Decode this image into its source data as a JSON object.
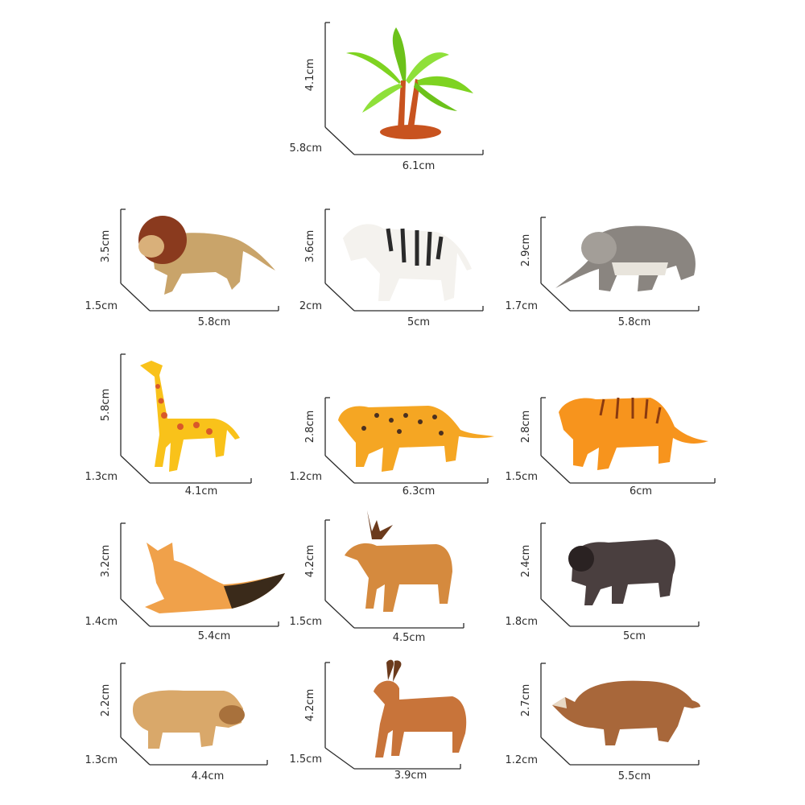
{
  "figures": [
    {
      "name": "palm-tree",
      "height": "4.1cm",
      "depth": "5.8cm",
      "width": "6.1cm",
      "colors": {
        "main": "#7ed321",
        "accent": "#c8531f"
      }
    },
    {
      "name": "lion",
      "height": "3.5cm",
      "depth": "1.5cm",
      "width": "5.8cm",
      "colors": {
        "main": "#c9a46a",
        "accent": "#8a3a1e"
      }
    },
    {
      "name": "zebra",
      "height": "3.6cm",
      "depth": "2cm",
      "width": "5cm",
      "colors": {
        "main": "#f4f2ee",
        "accent": "#2a2a2a"
      }
    },
    {
      "name": "elephant",
      "height": "2.9cm",
      "depth": "1.7cm",
      "width": "5.8cm",
      "colors": {
        "main": "#8a8580",
        "accent": "#e8e4dc"
      }
    },
    {
      "name": "giraffe",
      "height": "5.8cm",
      "depth": "1.3cm",
      "width": "4.1cm",
      "colors": {
        "main": "#f9c21a",
        "accent": "#d9592a"
      }
    },
    {
      "name": "leopard",
      "height": "2.8cm",
      "depth": "1.2cm",
      "width": "6.3cm",
      "colors": {
        "main": "#f5a623",
        "accent": "#4a3020"
      }
    },
    {
      "name": "tiger",
      "height": "2.8cm",
      "depth": "1.5cm",
      "width": "6cm",
      "colors": {
        "main": "#f7941d",
        "accent": "#8a3a10"
      }
    },
    {
      "name": "fox",
      "height": "3.2cm",
      "depth": "1.4cm",
      "width": "5.4cm",
      "colors": {
        "main": "#f0a14a",
        "accent": "#3a2a1a"
      }
    },
    {
      "name": "deer",
      "height": "4.2cm",
      "depth": "1.5cm",
      "width": "4.5cm",
      "colors": {
        "main": "#d58a3e",
        "accent": "#6b3a1c"
      }
    },
    {
      "name": "bear",
      "height": "2.4cm",
      "depth": "1.8cm",
      "width": "5cm",
      "colors": {
        "main": "#4a3f3f",
        "accent": "#2a2222"
      }
    },
    {
      "name": "hippo",
      "height": "2.2cm",
      "depth": "1.3cm",
      "width": "4.4cm",
      "colors": {
        "main": "#d9a86a",
        "accent": "#a8713c"
      }
    },
    {
      "name": "antelope",
      "height": "4.2cm",
      "depth": "1.5cm",
      "width": "3.9cm",
      "colors": {
        "main": "#c8743a",
        "accent": "#6b3a1c"
      }
    },
    {
      "name": "rhinoceros",
      "height": "2.7cm",
      "depth": "1.2cm",
      "width": "5.5cm",
      "colors": {
        "main": "#a8673a",
        "accent": "#6b3a1c"
      }
    }
  ]
}
